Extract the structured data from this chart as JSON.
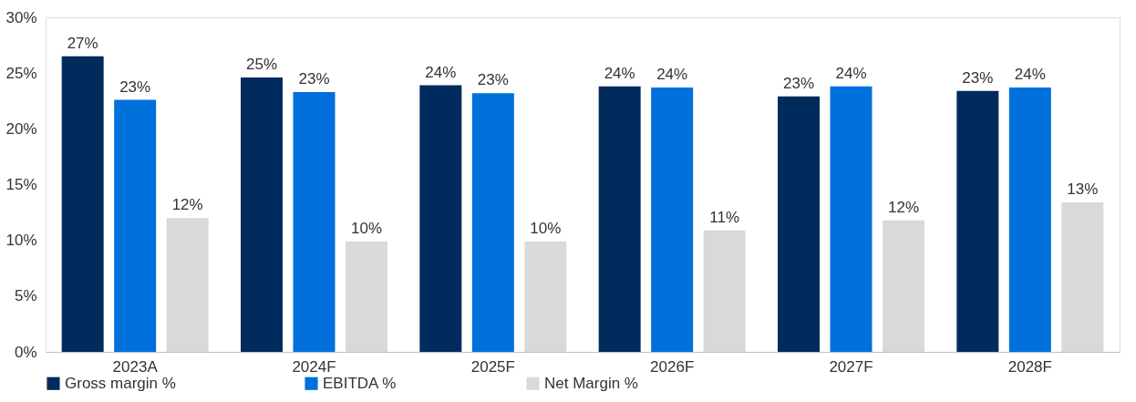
{
  "chart_data": {
    "type": "bar",
    "categories": [
      "2023A",
      "2024F",
      "2025F",
      "2026F",
      "2027F",
      "2028F"
    ],
    "series": [
      {
        "name": "Gross margin %",
        "color": "#002b5c",
        "values": [
          26.5,
          24.6,
          23.9,
          23.8,
          22.9,
          23.4
        ],
        "value_labels": [
          "27%",
          "25%",
          "24%",
          "24%",
          "23%",
          "23%"
        ]
      },
      {
        "name": "EBITDA %",
        "color": "#0070dd",
        "values": [
          22.6,
          23.3,
          23.2,
          23.7,
          23.8,
          23.7
        ],
        "value_labels": [
          "23%",
          "23%",
          "23%",
          "24%",
          "24%",
          "24%"
        ]
      },
      {
        "name": "Net Margin  %",
        "color": "#d9d9d9",
        "values": [
          12.0,
          9.9,
          9.9,
          10.9,
          11.8,
          13.4
        ],
        "value_labels": [
          "12%",
          "10%",
          "10%",
          "11%",
          "12%",
          "13%"
        ]
      }
    ],
    "ylim": [
      0,
      30
    ],
    "yticks": [
      {
        "value": 0,
        "label": "0%"
      },
      {
        "value": 5,
        "label": "5%"
      },
      {
        "value": 10,
        "label": "10%"
      },
      {
        "value": 15,
        "label": "15%"
      },
      {
        "value": 20,
        "label": "20%"
      },
      {
        "value": 25,
        "label": "25%"
      },
      {
        "value": 30,
        "label": "30%"
      }
    ],
    "grid": false,
    "legend": "bottom"
  }
}
